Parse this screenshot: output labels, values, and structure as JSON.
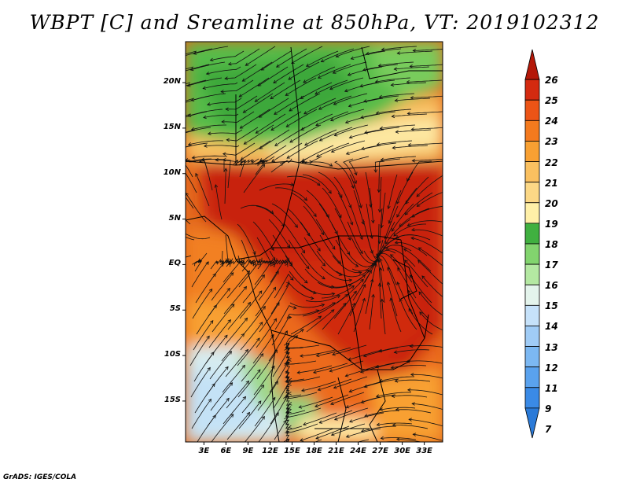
{
  "title": "WBPT [C] and Sreamline at 850hPa, VT: 2019102312",
  "map": {
    "variable": "Wet-bulb potential temperature",
    "units": "C",
    "level": "850hPa",
    "lat_ticks": [
      "20N",
      "15N",
      "10N",
      "5N",
      "EQ",
      "5S",
      "10S",
      "15S"
    ],
    "lon_ticks": [
      "3E",
      "6E",
      "9E",
      "12E",
      "15E",
      "18E",
      "21E",
      "24E",
      "27E",
      "30E",
      "33E"
    ],
    "extent": {
      "lon_min": 0.5,
      "lon_max": 35.5,
      "lat_min": -19.5,
      "lat_max": 24.5
    }
  },
  "colorbar": {
    "levels": [
      "7",
      "9",
      "11",
      "12",
      "13",
      "14",
      "15",
      "16",
      "17",
      "18",
      "19",
      "20",
      "21",
      "22",
      "23",
      "24",
      "25",
      "26"
    ],
    "colors": [
      "#2a7ad8",
      "#3a8ae6",
      "#5aa2ee",
      "#7cb8f2",
      "#a0ccf6",
      "#c6e2fa",
      "#e4f4ec",
      "#b4e8a2",
      "#82d46e",
      "#40b040",
      "#fff0a8",
      "#fcd886",
      "#fac060",
      "#f8a032",
      "#f47a1e",
      "#ec5416",
      "#d42a10",
      "#b41808"
    ]
  },
  "credit": "GrADS: IGES/COLA"
}
